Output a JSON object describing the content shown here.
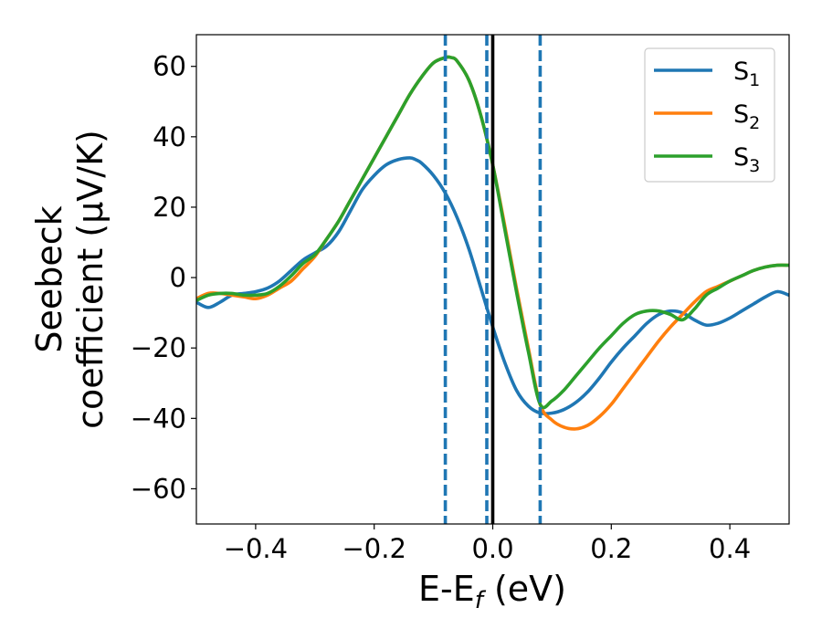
{
  "chart_data": {
    "type": "line",
    "xlabel": {
      "main": "E-E",
      "sub": "f",
      "units": " (eV)"
    },
    "ylabel": {
      "line1": "Seebeck",
      "line2": "coefficient  (μV/K)"
    },
    "xlim": [
      -0.5,
      0.5
    ],
    "ylim": [
      -70,
      69
    ],
    "x_ticks": [
      -0.4,
      -0.2,
      0.0,
      0.2,
      0.4
    ],
    "x_tick_labels": [
      "−0.4",
      "−0.2",
      "0.0",
      "0.2",
      "0.4"
    ],
    "y_ticks": [
      -60,
      -40,
      -20,
      0,
      20,
      40,
      60
    ],
    "y_tick_labels": [
      "−60",
      "−40",
      "−20",
      "0",
      "20",
      "40",
      "60"
    ],
    "legend_position": "top-right",
    "series": [
      {
        "name": "S",
        "sub": "1",
        "color": "#1f77b4",
        "x": [
          -0.5,
          -0.48,
          -0.46,
          -0.44,
          -0.42,
          -0.4,
          -0.38,
          -0.36,
          -0.34,
          -0.32,
          -0.3,
          -0.28,
          -0.26,
          -0.24,
          -0.22,
          -0.2,
          -0.18,
          -0.16,
          -0.14,
          -0.13,
          -0.12,
          -0.1,
          -0.08,
          -0.06,
          -0.04,
          -0.02,
          0.0,
          0.02,
          0.04,
          0.06,
          0.08,
          0.1,
          0.12,
          0.14,
          0.16,
          0.18,
          0.2,
          0.22,
          0.24,
          0.26,
          0.28,
          0.3,
          0.32,
          0.34,
          0.36,
          0.38,
          0.4,
          0.42,
          0.44,
          0.46,
          0.48,
          0.5
        ],
        "y": [
          -7,
          -8.5,
          -7,
          -5,
          -4.5,
          -4,
          -3,
          -1,
          2,
          5,
          7,
          9,
          13,
          19,
          25,
          29,
          32,
          33.5,
          34,
          33.5,
          32.5,
          29,
          24,
          17,
          8,
          -3,
          -14,
          -24,
          -32,
          -36.5,
          -38.5,
          -38.5,
          -37.5,
          -35.5,
          -32.5,
          -28.5,
          -24,
          -20,
          -16.5,
          -13,
          -10.5,
          -9.5,
          -10,
          -12,
          -13.5,
          -13,
          -11.5,
          -9.5,
          -7.5,
          -5.5,
          -4,
          -5
        ]
      },
      {
        "name": "S",
        "sub": "2",
        "color": "#ff7f0e",
        "x": [
          -0.5,
          -0.48,
          -0.46,
          -0.44,
          -0.42,
          -0.4,
          -0.38,
          -0.36,
          -0.34,
          -0.32,
          -0.3,
          -0.28,
          -0.26,
          -0.24,
          -0.22,
          -0.2,
          -0.18,
          -0.16,
          -0.14,
          -0.12,
          -0.1,
          -0.08,
          -0.07,
          -0.06,
          -0.04,
          -0.02,
          0.0,
          0.02,
          0.04,
          0.06,
          0.08,
          0.1,
          0.12,
          0.14,
          0.16,
          0.18,
          0.2,
          0.22,
          0.24,
          0.26,
          0.28,
          0.3,
          0.32,
          0.34,
          0.36,
          0.38,
          0.4,
          0.42,
          0.44,
          0.46,
          0.48,
          0.5
        ],
        "y": [
          -6,
          -4.5,
          -4.5,
          -5,
          -5.5,
          -6,
          -5,
          -3,
          -1,
          2.5,
          6,
          11,
          16,
          22,
          28,
          34,
          40,
          46,
          52,
          57,
          61,
          62.5,
          62.5,
          61.5,
          56,
          46,
          32,
          15,
          -3,
          -20,
          -36,
          -40.5,
          -42.5,
          -43,
          -42,
          -39.5,
          -36,
          -31.5,
          -27,
          -22.5,
          -18,
          -14,
          -10.5,
          -7,
          -4,
          -2.5,
          -1,
          0.5,
          2,
          3,
          3.5,
          3.5
        ]
      },
      {
        "name": "S",
        "sub": "3",
        "color": "#2ca02c",
        "x": [
          -0.5,
          -0.48,
          -0.46,
          -0.44,
          -0.42,
          -0.4,
          -0.38,
          -0.36,
          -0.34,
          -0.32,
          -0.3,
          -0.28,
          -0.26,
          -0.24,
          -0.22,
          -0.2,
          -0.18,
          -0.16,
          -0.14,
          -0.12,
          -0.1,
          -0.08,
          -0.07,
          -0.06,
          -0.04,
          -0.02,
          0.0,
          0.02,
          0.04,
          0.06,
          0.08,
          0.1,
          0.12,
          0.14,
          0.16,
          0.18,
          0.2,
          0.22,
          0.24,
          0.26,
          0.28,
          0.3,
          0.32,
          0.34,
          0.36,
          0.38,
          0.4,
          0.42,
          0.44,
          0.46,
          0.48,
          0.5
        ],
        "y": [
          -6.5,
          -5,
          -4.5,
          -4.5,
          -5,
          -5,
          -4.5,
          -2.5,
          0.5,
          4,
          6.5,
          11,
          16,
          22,
          28,
          34,
          40,
          46,
          52,
          57,
          61,
          62.5,
          62.5,
          61.5,
          56,
          46,
          32,
          14,
          -4,
          -21,
          -36,
          -35,
          -32,
          -28,
          -24,
          -20,
          -16.5,
          -13,
          -10.5,
          -9.5,
          -9.5,
          -10.5,
          -12,
          -9,
          -5,
          -3,
          -1,
          0.5,
          2,
          3,
          3.5,
          3.5
        ]
      }
    ],
    "vlines": [
      {
        "x": -0.08,
        "style": "dashed",
        "color": "#1f77b4"
      },
      {
        "x": -0.01,
        "style": "dashed",
        "color": "#1f77b4"
      },
      {
        "x": 0.0,
        "style": "solid",
        "color": "#000000"
      },
      {
        "x": 0.08,
        "style": "dashed",
        "color": "#1f77b4"
      }
    ]
  }
}
